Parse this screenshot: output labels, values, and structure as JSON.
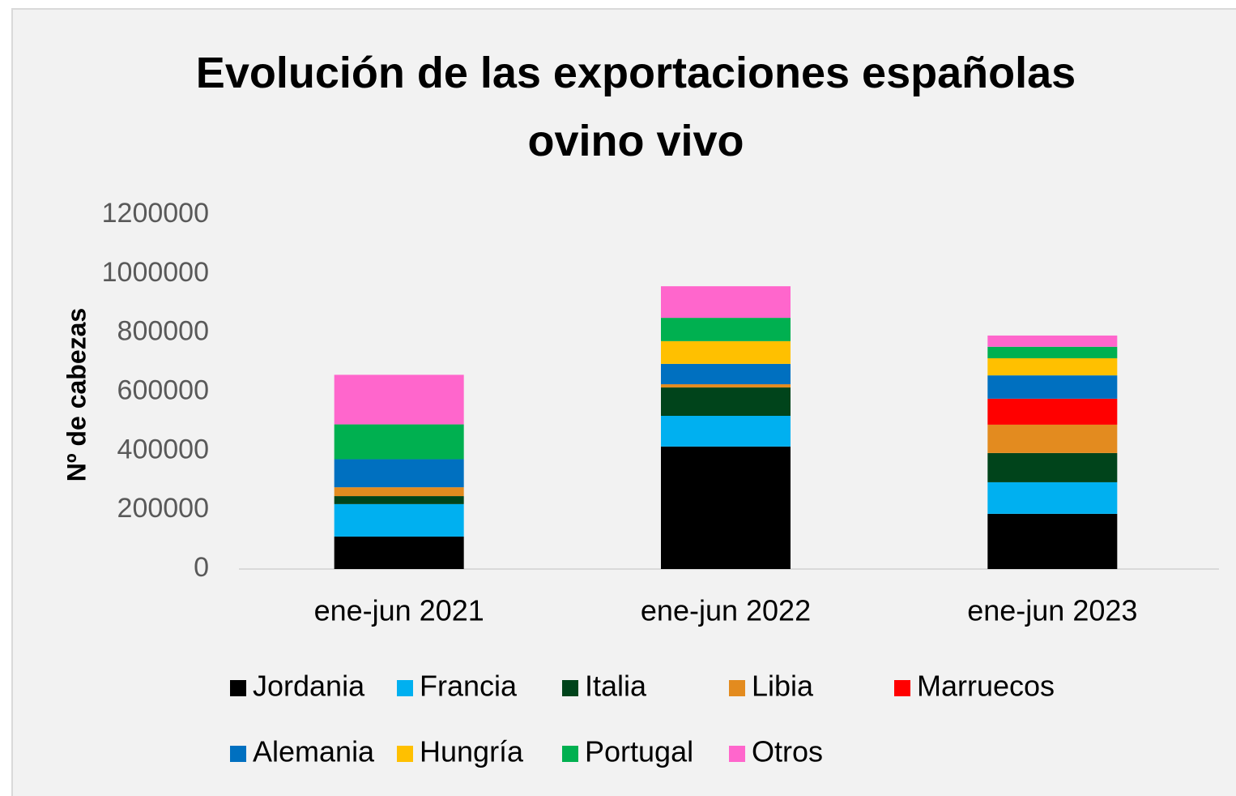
{
  "chart_data": {
    "type": "stacked_bar",
    "title": "Evolución de las exportaciones españolas ovino vivo",
    "y_label": "Nº de cabezas",
    "categories": [
      "ene-jun 2021",
      "ene-jun 2022",
      "ene-jun 2023"
    ],
    "series": [
      {
        "name": "Jordania",
        "color": "#000000",
        "values": [
          110000,
          415000,
          187000
        ]
      },
      {
        "name": "Francia",
        "color": "#00b0f0",
        "values": [
          110000,
          104000,
          107000
        ]
      },
      {
        "name": "Italia",
        "color": "#00441b",
        "values": [
          27000,
          96000,
          99000
        ]
      },
      {
        "name": "Libia",
        "color": "#e38b1f",
        "values": [
          30000,
          11000,
          96000
        ]
      },
      {
        "name": "Marruecos",
        "color": "#ff0000",
        "values": [
          0,
          0,
          88000
        ]
      },
      {
        "name": "Alemania",
        "color": "#0070c0",
        "values": [
          95000,
          69000,
          79000
        ]
      },
      {
        "name": "Hungría",
        "color": "#ffc000",
        "values": [
          0,
          77000,
          58000
        ]
      },
      {
        "name": "Portugal",
        "color": "#00b050",
        "values": [
          118000,
          79000,
          39000
        ]
      },
      {
        "name": "Otros",
        "color": "#ff66cc",
        "values": [
          168000,
          107000,
          38000
        ]
      }
    ],
    "ylim": [
      0,
      1200000
    ],
    "yticks": [
      0,
      200000,
      400000,
      600000,
      800000,
      1000000,
      1200000
    ],
    "grid": false
  }
}
